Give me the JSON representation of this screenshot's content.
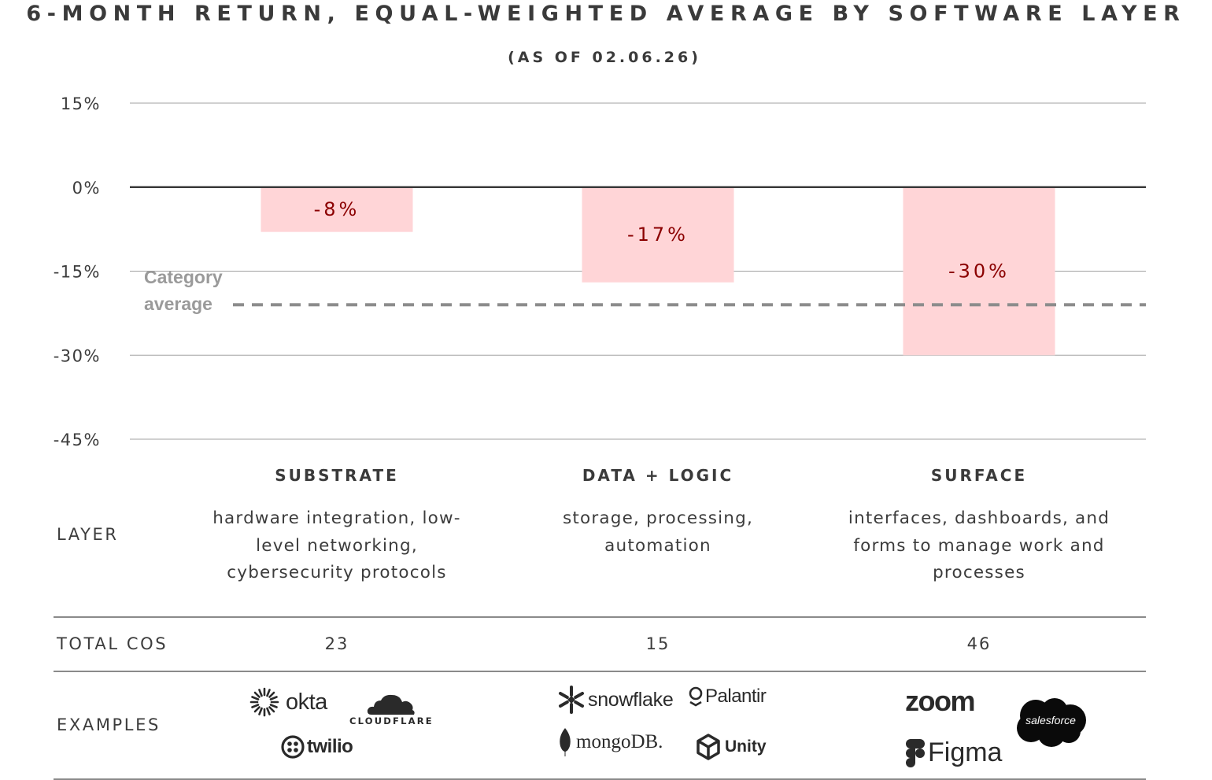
{
  "title": "6-MONTH RETURN, EQUAL-WEIGHTED AVERAGE BY SOFTWARE LAYER",
  "subtitle": "(AS OF 02.06.26)",
  "chart_data": {
    "type": "bar",
    "title": "6-MONTH RETURN, EQUAL-WEIGHTED AVERAGE BY SOFTWARE LAYER",
    "subtitle": "(AS OF 02.06.26)",
    "categories": [
      "SUBSTRATE",
      "DATA + LOGIC",
      "SURFACE"
    ],
    "values": [
      -8,
      -17,
      -30
    ],
    "data_labels": [
      "-8%",
      "-17%",
      "-30%"
    ],
    "ylim": [
      -45,
      15
    ],
    "yticks": [
      15,
      0,
      -15,
      -30,
      -45
    ],
    "ytick_labels": [
      "15%",
      "0%",
      "-15%",
      "-30%",
      "-45%"
    ],
    "reference_line": {
      "label_line1": "Category",
      "label_line2": "average",
      "value": -21,
      "style": "dashed"
    },
    "grid": true,
    "xlabel": "",
    "ylabel": "",
    "bar_color": "#ffd5d7",
    "label_color": "#8b0000"
  },
  "table": {
    "row_labels": {
      "layer": "LAYER",
      "total": "TOTAL COS",
      "examples": "EXAMPLES"
    },
    "columns": [
      {
        "name": "SUBSTRATE",
        "desc_lines": [
          "hardware integration, low-",
          "level networking,",
          "cybersecurity protocols"
        ],
        "total": "23",
        "examples": [
          "okta",
          "CLOUDFLARE",
          "twilio"
        ]
      },
      {
        "name": "DATA + LOGIC",
        "desc_lines": [
          "storage, processing,",
          "automation"
        ],
        "total": "15",
        "examples": [
          "snowflake",
          "Palantir",
          "mongoDB.",
          "Unity"
        ]
      },
      {
        "name": "SURFACE",
        "desc_lines": [
          "interfaces, dashboards, and",
          "forms to manage work and",
          "processes"
        ],
        "total": "46",
        "examples": [
          "zoom",
          "salesforce",
          "Figma"
        ]
      }
    ]
  },
  "colors": {
    "text": "#3c3c3c",
    "grid": "#a0a0a0",
    "zero_line": "#3a3a3a",
    "average_line": "#8c8c8c",
    "average_label": "#9a9a9a"
  }
}
